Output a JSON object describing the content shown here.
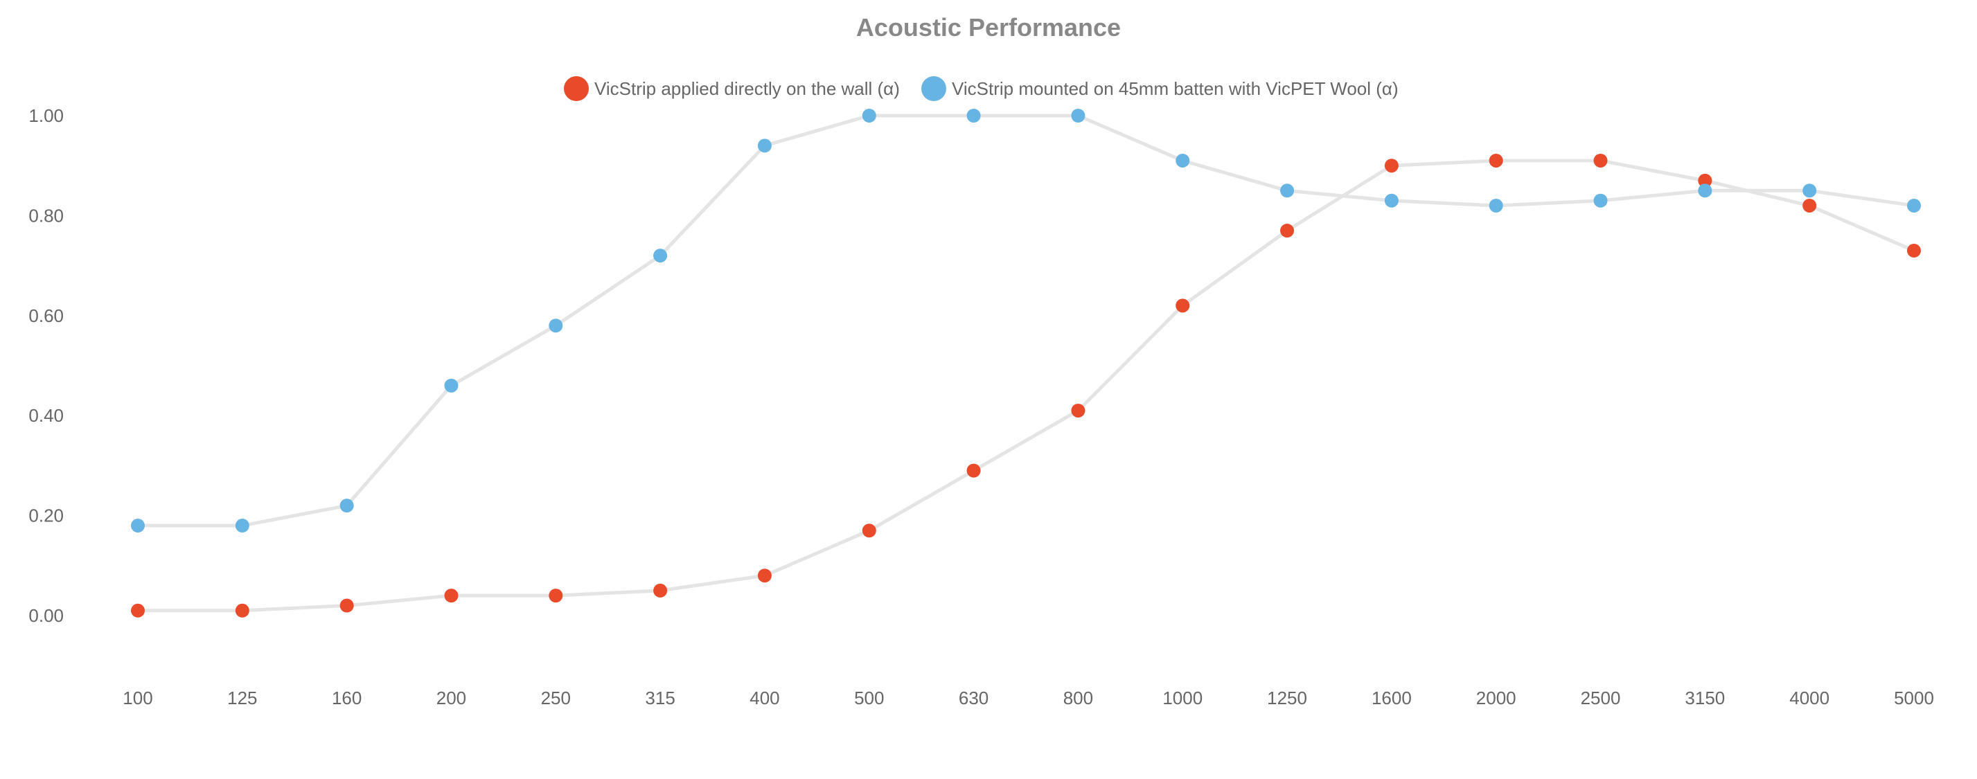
{
  "chart_data": {
    "type": "line",
    "title": "Acoustic Performance",
    "xlabel": "",
    "ylabel": "",
    "categories": [
      "100",
      "125",
      "160",
      "200",
      "250",
      "315",
      "400",
      "500",
      "630",
      "800",
      "1000",
      "1250",
      "1600",
      "2000",
      "2500",
      "3150",
      "4000",
      "5000"
    ],
    "ylim": [
      -0.12,
      1.0
    ],
    "yticks": [
      "1.00",
      "0.80",
      "0.60",
      "0.40",
      "0.20",
      "0.00"
    ],
    "grid": false,
    "legend_position": "top-center",
    "line_color": "#e4e4e4",
    "series": [
      {
        "name": "VicStrip applied directly on the wall (α)",
        "color": "#e84a2a",
        "values": [
          0.01,
          0.01,
          0.02,
          0.04,
          0.04,
          0.05,
          0.08,
          0.17,
          0.29,
          0.41,
          0.62,
          0.77,
          0.9,
          0.91,
          0.91,
          0.87,
          0.82,
          0.73
        ]
      },
      {
        "name": "VicStrip mounted on 45mm batten with VicPET Wool (α)",
        "color": "#66b4e3",
        "values": [
          0.18,
          0.18,
          0.22,
          0.46,
          0.58,
          0.72,
          0.94,
          1.0,
          1.0,
          1.0,
          0.91,
          0.85,
          0.83,
          0.82,
          0.83,
          0.85,
          0.85,
          0.82
        ]
      }
    ]
  }
}
